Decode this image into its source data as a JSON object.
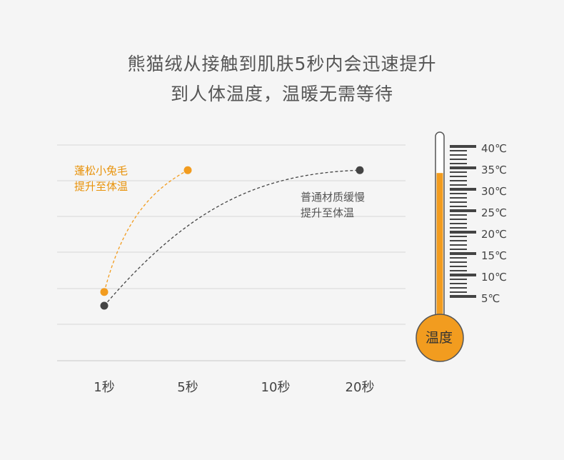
{
  "headline": {
    "line1": "熊猫绒从接触到肌肤5秒内会迅速提升",
    "line2": "到人体温度，温暖无需等待"
  },
  "annotations": {
    "fluffy_line1": "蓬松小兔毛",
    "fluffy_line2": "提升至体温",
    "ordinary_line1": "普通材质缓慢",
    "ordinary_line2": "提升至体温"
  },
  "colors": {
    "fluffy": "#f29c1f",
    "ordinary": "#444444",
    "grid": "#d6d6d6",
    "thermometer_fill": "#f29c1f"
  },
  "chart_data": {
    "type": "line",
    "categories": [
      "1秒",
      "5秒",
      "10秒",
      "20秒"
    ],
    "grid": true,
    "series": [
      {
        "name": "蓬松小兔毛 提升至体温",
        "x": [
          "1秒",
          "5秒"
        ],
        "values": [
          0.35,
          0.97
        ],
        "color": "#f29c1f",
        "style": "dashed"
      },
      {
        "name": "普通材质缓慢 提升至体温",
        "x": [
          "1秒",
          "20秒"
        ],
        "values": [
          0.28,
          0.97
        ],
        "color": "#444444",
        "style": "dashed"
      }
    ]
  },
  "thermometer": {
    "label": "温度",
    "ticks": [
      "40℃",
      "35℃",
      "30℃",
      "25℃",
      "20℃",
      "15℃",
      "10℃",
      "5℃"
    ],
    "fill_level": 0.78
  }
}
